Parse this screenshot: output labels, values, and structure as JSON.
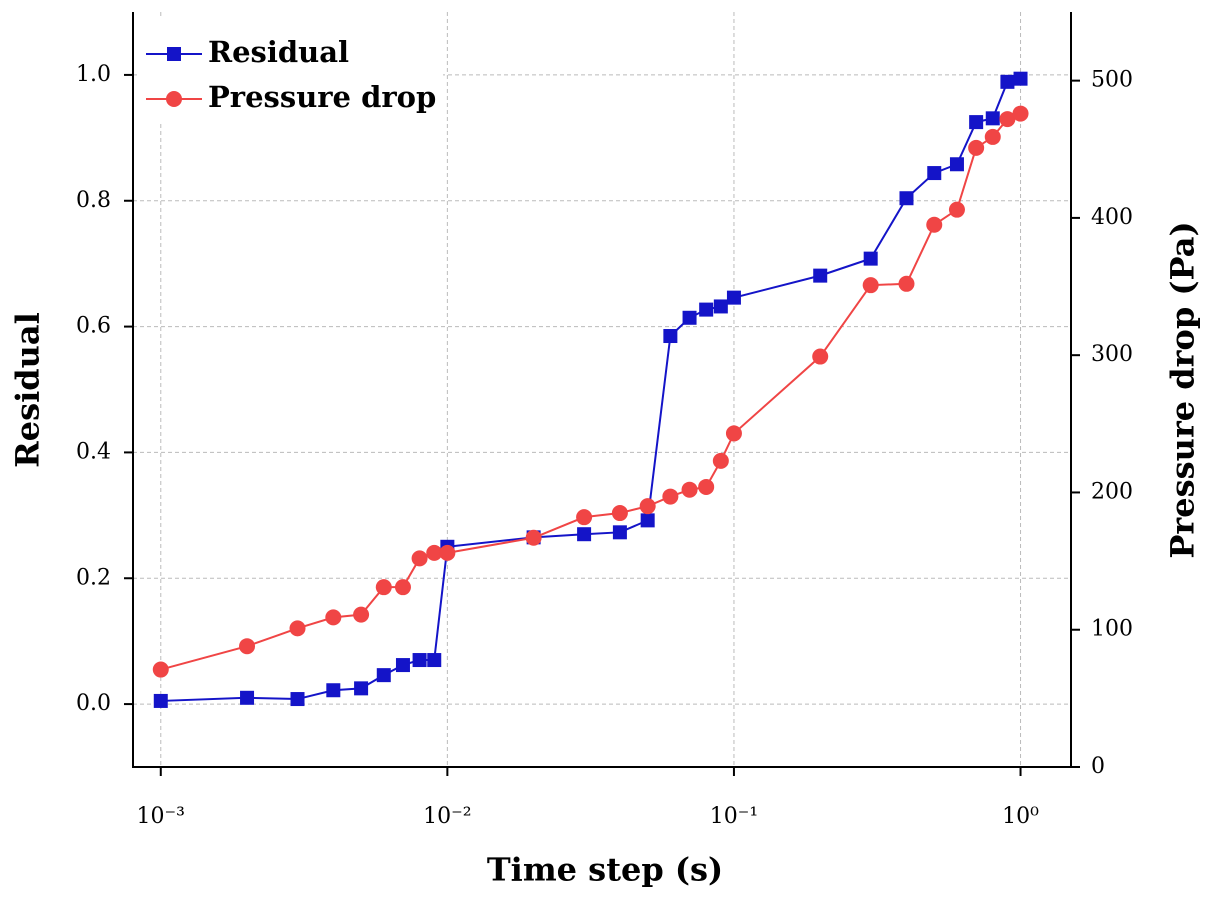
{
  "chart_data": {
    "type": "line",
    "xlabel": "Time step (s)",
    "ylabel": "Residual",
    "y2label": "Pressure drop (Pa)",
    "x": [
      0.001,
      0.002,
      0.003,
      0.004,
      0.005,
      0.006,
      0.007,
      0.008,
      0.009,
      0.01,
      0.02,
      0.03,
      0.04,
      0.05,
      0.06,
      0.07,
      0.08,
      0.09,
      0.1,
      0.2,
      0.3,
      0.4,
      0.5,
      0.6,
      0.7,
      0.8,
      0.9,
      1.0
    ],
    "series": [
      {
        "name": "Residual",
        "color": "#1414c8",
        "marker": "square",
        "values": [
          0.005,
          0.01,
          0.008,
          0.022,
          0.025,
          0.046,
          0.062,
          0.07,
          0.07,
          0.25,
          0.265,
          0.27,
          0.273,
          0.292,
          0.585,
          0.614,
          0.627,
          0.632,
          0.646,
          0.681,
          0.708,
          0.804,
          0.844,
          0.858,
          0.925,
          0.931,
          0.989,
          0.994
        ]
      },
      {
        "name": "Pressure drop",
        "color": "#f04545",
        "marker": "circle",
        "axis": "y2",
        "values": [
          71,
          88,
          101,
          109,
          111,
          131,
          131,
          152,
          156,
          156,
          167,
          182,
          185,
          190,
          197,
          202,
          204,
          223,
          243,
          299,
          351,
          352,
          395,
          406,
          451,
          459,
          472,
          476
        ]
      }
    ],
    "xscale": "log",
    "xlim": [
      0.0008,
      1.5
    ],
    "xticks": [
      {
        "value": 0.001,
        "label": "10⁻³"
      },
      {
        "value": 0.01,
        "label": "10⁻²"
      },
      {
        "value": 0.1,
        "label": "10⁻¹"
      },
      {
        "value": 1,
        "label": "10⁰"
      }
    ],
    "ylim": [
      -0.1,
      1.1
    ],
    "yticks": [
      {
        "value": 0,
        "label": "0.0"
      },
      0.2,
      0.4,
      0.6,
      0.8,
      {
        "value": 1,
        "label": "1.0"
      }
    ],
    "y2lim": [
      0,
      550
    ],
    "y2ticks": [
      0,
      100,
      200,
      300,
      400,
      500
    ],
    "grid": true,
    "legend": "upper left"
  }
}
